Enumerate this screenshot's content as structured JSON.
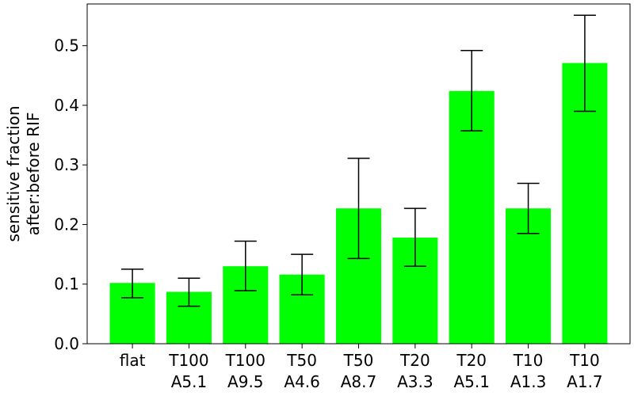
{
  "chart_data": {
    "type": "bar",
    "title": "",
    "xlabel": "",
    "ylabel_lines": [
      "sensitive fraction",
      "after:before RIF"
    ],
    "ylim": [
      0,
      0.57
    ],
    "yticks": [
      0.0,
      0.1,
      0.2,
      0.3,
      0.4,
      0.5
    ],
    "ytick_labels": [
      "0.0",
      "0.1",
      "0.2",
      "0.3",
      "0.4",
      "0.5"
    ],
    "bar_color": "#00ff00",
    "categories": [
      [
        "flat"
      ],
      [
        "T100",
        "A5.1"
      ],
      [
        "T100",
        "A9.5"
      ],
      [
        "T50",
        "A4.6"
      ],
      [
        "T50",
        "A8.7"
      ],
      [
        "T20",
        "A3.3"
      ],
      [
        "T20",
        "A5.1"
      ],
      [
        "T10",
        "A1.3"
      ],
      [
        "T10",
        "A1.7"
      ]
    ],
    "values": [
      0.102,
      0.087,
      0.13,
      0.116,
      0.227,
      0.178,
      0.424,
      0.227,
      0.471
    ],
    "error_low": [
      0.077,
      0.063,
      0.089,
      0.082,
      0.143,
      0.13,
      0.357,
      0.185,
      0.39
    ],
    "error_high": [
      0.125,
      0.11,
      0.172,
      0.15,
      0.311,
      0.227,
      0.492,
      0.269,
      0.551
    ],
    "grid": false,
    "legend": "none"
  }
}
